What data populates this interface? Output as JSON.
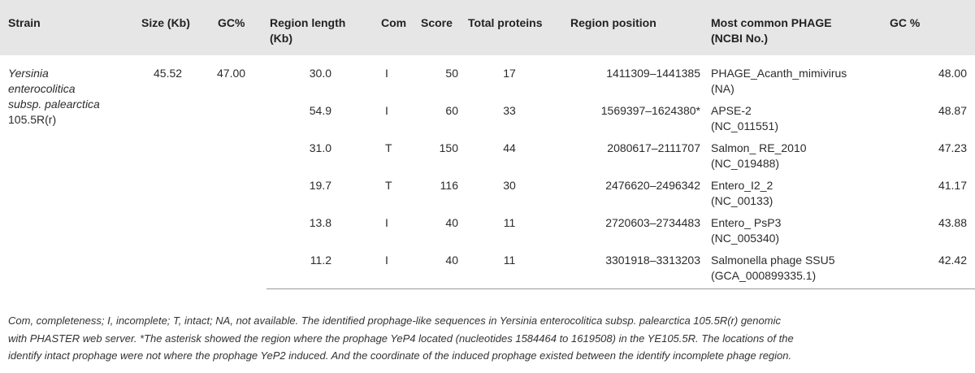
{
  "table": {
    "headers": {
      "strain": "Strain",
      "size": "Size (Kb)",
      "gc": "GC%",
      "region_length": "Region length (Kb)",
      "com": "Com",
      "score": "Score",
      "total_proteins": "Total proteins",
      "region_position": "Region position",
      "phage_line1": "Most common PHAGE",
      "phage_line2": "(NCBI No.)",
      "gc2": "GC %"
    },
    "strain": {
      "line1": "Yersinia",
      "line2": "enterocolitica",
      "line3": "subsp. palearctica",
      "line4": "105.5R(r)",
      "size": "45.52",
      "gc": "47.00"
    },
    "rows": [
      {
        "length": "30.0",
        "com": "I",
        "score": "50",
        "proteins": "17",
        "position": "1411309–1441385",
        "phage": "PHAGE_Acanth_mimivirus",
        "ncbi": "(NA)",
        "gc": "48.00"
      },
      {
        "length": "54.9",
        "com": "I",
        "score": "60",
        "proteins": "33",
        "position": "1569397–1624380*",
        "phage": "APSE-2",
        "ncbi": "(NC_011551)",
        "gc": "48.87"
      },
      {
        "length": "31.0",
        "com": "T",
        "score": "150",
        "proteins": "44",
        "position": "2080617–2111707",
        "phage": "Salmon_ RE_2010",
        "ncbi": "(NC_019488)",
        "gc": "47.23"
      },
      {
        "length": "19.7",
        "com": "T",
        "score": "116",
        "proteins": "30",
        "position": "2476620–2496342",
        "phage": "Entero_I2_2",
        "ncbi": "(NC_00133)",
        "gc": "41.17"
      },
      {
        "length": "13.8",
        "com": "I",
        "score": "40",
        "proteins": "11",
        "position": "2720603–2734483",
        "phage": "Entero_ PsP3",
        "ncbi": "(NC_005340)",
        "gc": "43.88"
      },
      {
        "length": "11.2",
        "com": "I",
        "score": "40",
        "proteins": "11",
        "position": "3301918–3313203",
        "phage": "Salmonella phage SSU5",
        "ncbi": "(GCA_000899335.1)",
        "gc": "42.42"
      }
    ]
  },
  "footnote": {
    "line1": "Com, completeness; I, incomplete; T, intact; NA, not available. The identified prophage-like sequences in Yersinia enterocolitica subsp. palearctica 105.5R(r) genomic",
    "line2": "with PHASTER web server. *The asterisk showed the region where the prophage YeP4 located (nucleotides 1584464 to 1619508) in the YE105.5R. The locations of the",
    "line3": "identify intact prophage were not where the prophage YeP2 induced. And the coordinate of the induced prophage existed between the identify incomplete phage region."
  }
}
